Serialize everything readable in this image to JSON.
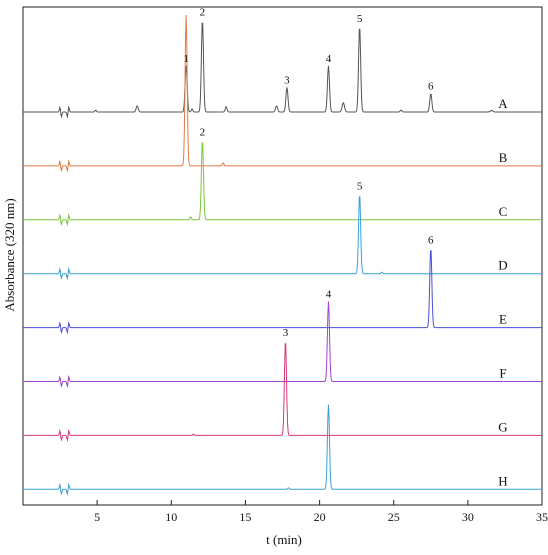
{
  "chart_data": {
    "type": "line",
    "xlabel": "t (min)",
    "ylabel": "Absorbance (320 nm)",
    "xlim": [
      0,
      35
    ],
    "x_ticks": [
      5,
      10,
      15,
      20,
      25,
      30,
      35
    ],
    "grid": false,
    "legend": "none",
    "series": [
      {
        "name": "A",
        "color": "#555555",
        "baseline": 0.0,
        "peaks": [
          {
            "t": 4.9,
            "h": 0.012,
            "w": 0.05
          },
          {
            "t": 7.7,
            "h": 0.04,
            "w": 0.07
          },
          {
            "t": 11.0,
            "h": 0.3,
            "w": 0.07,
            "label": "1"
          },
          {
            "t": 11.4,
            "h": 0.02,
            "w": 0.05
          },
          {
            "t": 12.1,
            "h": 0.6,
            "w": 0.07,
            "label": "2"
          },
          {
            "t": 13.7,
            "h": 0.035,
            "w": 0.06
          },
          {
            "t": 17.1,
            "h": 0.04,
            "w": 0.07
          },
          {
            "t": 17.8,
            "h": 0.16,
            "w": 0.07,
            "label": "3"
          },
          {
            "t": 20.6,
            "h": 0.3,
            "w": 0.07,
            "label": "4"
          },
          {
            "t": 21.6,
            "h": 0.06,
            "w": 0.08
          },
          {
            "t": 22.7,
            "h": 0.56,
            "w": 0.07,
            "label": "5"
          },
          {
            "t": 25.5,
            "h": 0.012,
            "w": 0.06
          },
          {
            "t": 27.5,
            "h": 0.12,
            "w": 0.07,
            "label": "6"
          },
          {
            "t": 31.6,
            "h": 0.01,
            "w": 0.08
          }
        ]
      },
      {
        "name": "B",
        "color": "#e07a45",
        "baseline": -0.35,
        "peaks": [
          {
            "t": 11.0,
            "h": 0.98,
            "w": 0.07
          },
          {
            "t": 13.5,
            "h": 0.02,
            "w": 0.05
          }
        ]
      },
      {
        "name": "C",
        "color": "#7cc63a",
        "baseline": -0.7,
        "peaks": [
          {
            "t": 11.3,
            "h": 0.02,
            "w": 0.05
          },
          {
            "t": 12.1,
            "h": 0.52,
            "w": 0.07,
            "label": "2"
          }
        ]
      },
      {
        "name": "D",
        "color": "#3a9fd8",
        "baseline": -1.05,
        "peaks": [
          {
            "t": 22.7,
            "h": 0.52,
            "w": 0.07,
            "label": "5"
          },
          {
            "t": 24.2,
            "h": 0.01,
            "w": 0.05
          }
        ]
      },
      {
        "name": "E",
        "color": "#4a4ed4",
        "baseline": -1.4,
        "peaks": [
          {
            "t": 27.5,
            "h": 0.52,
            "w": 0.07,
            "label": "6"
          }
        ]
      },
      {
        "name": "F",
        "color": "#a043d6",
        "baseline": -1.75,
        "peaks": [
          {
            "t": 20.6,
            "h": 0.52,
            "w": 0.07,
            "label": "4"
          }
        ]
      },
      {
        "name": "G",
        "color": "#d63a7a",
        "baseline": -2.1,
        "peaks": [
          {
            "t": 17.7,
            "h": 0.62,
            "w": 0.07,
            "label": "3"
          },
          {
            "t": 11.5,
            "h": 0.008,
            "w": 0.05
          }
        ]
      },
      {
        "name": "H",
        "color": "#3aa0d4",
        "baseline": -2.45,
        "peaks": [
          {
            "t": 20.6,
            "h": 0.55,
            "w": 0.07
          },
          {
            "t": 17.9,
            "h": 0.01,
            "w": 0.05
          }
        ]
      }
    ],
    "injection_artifact": {
      "t": [
        2.5,
        3.0
      ]
    }
  }
}
